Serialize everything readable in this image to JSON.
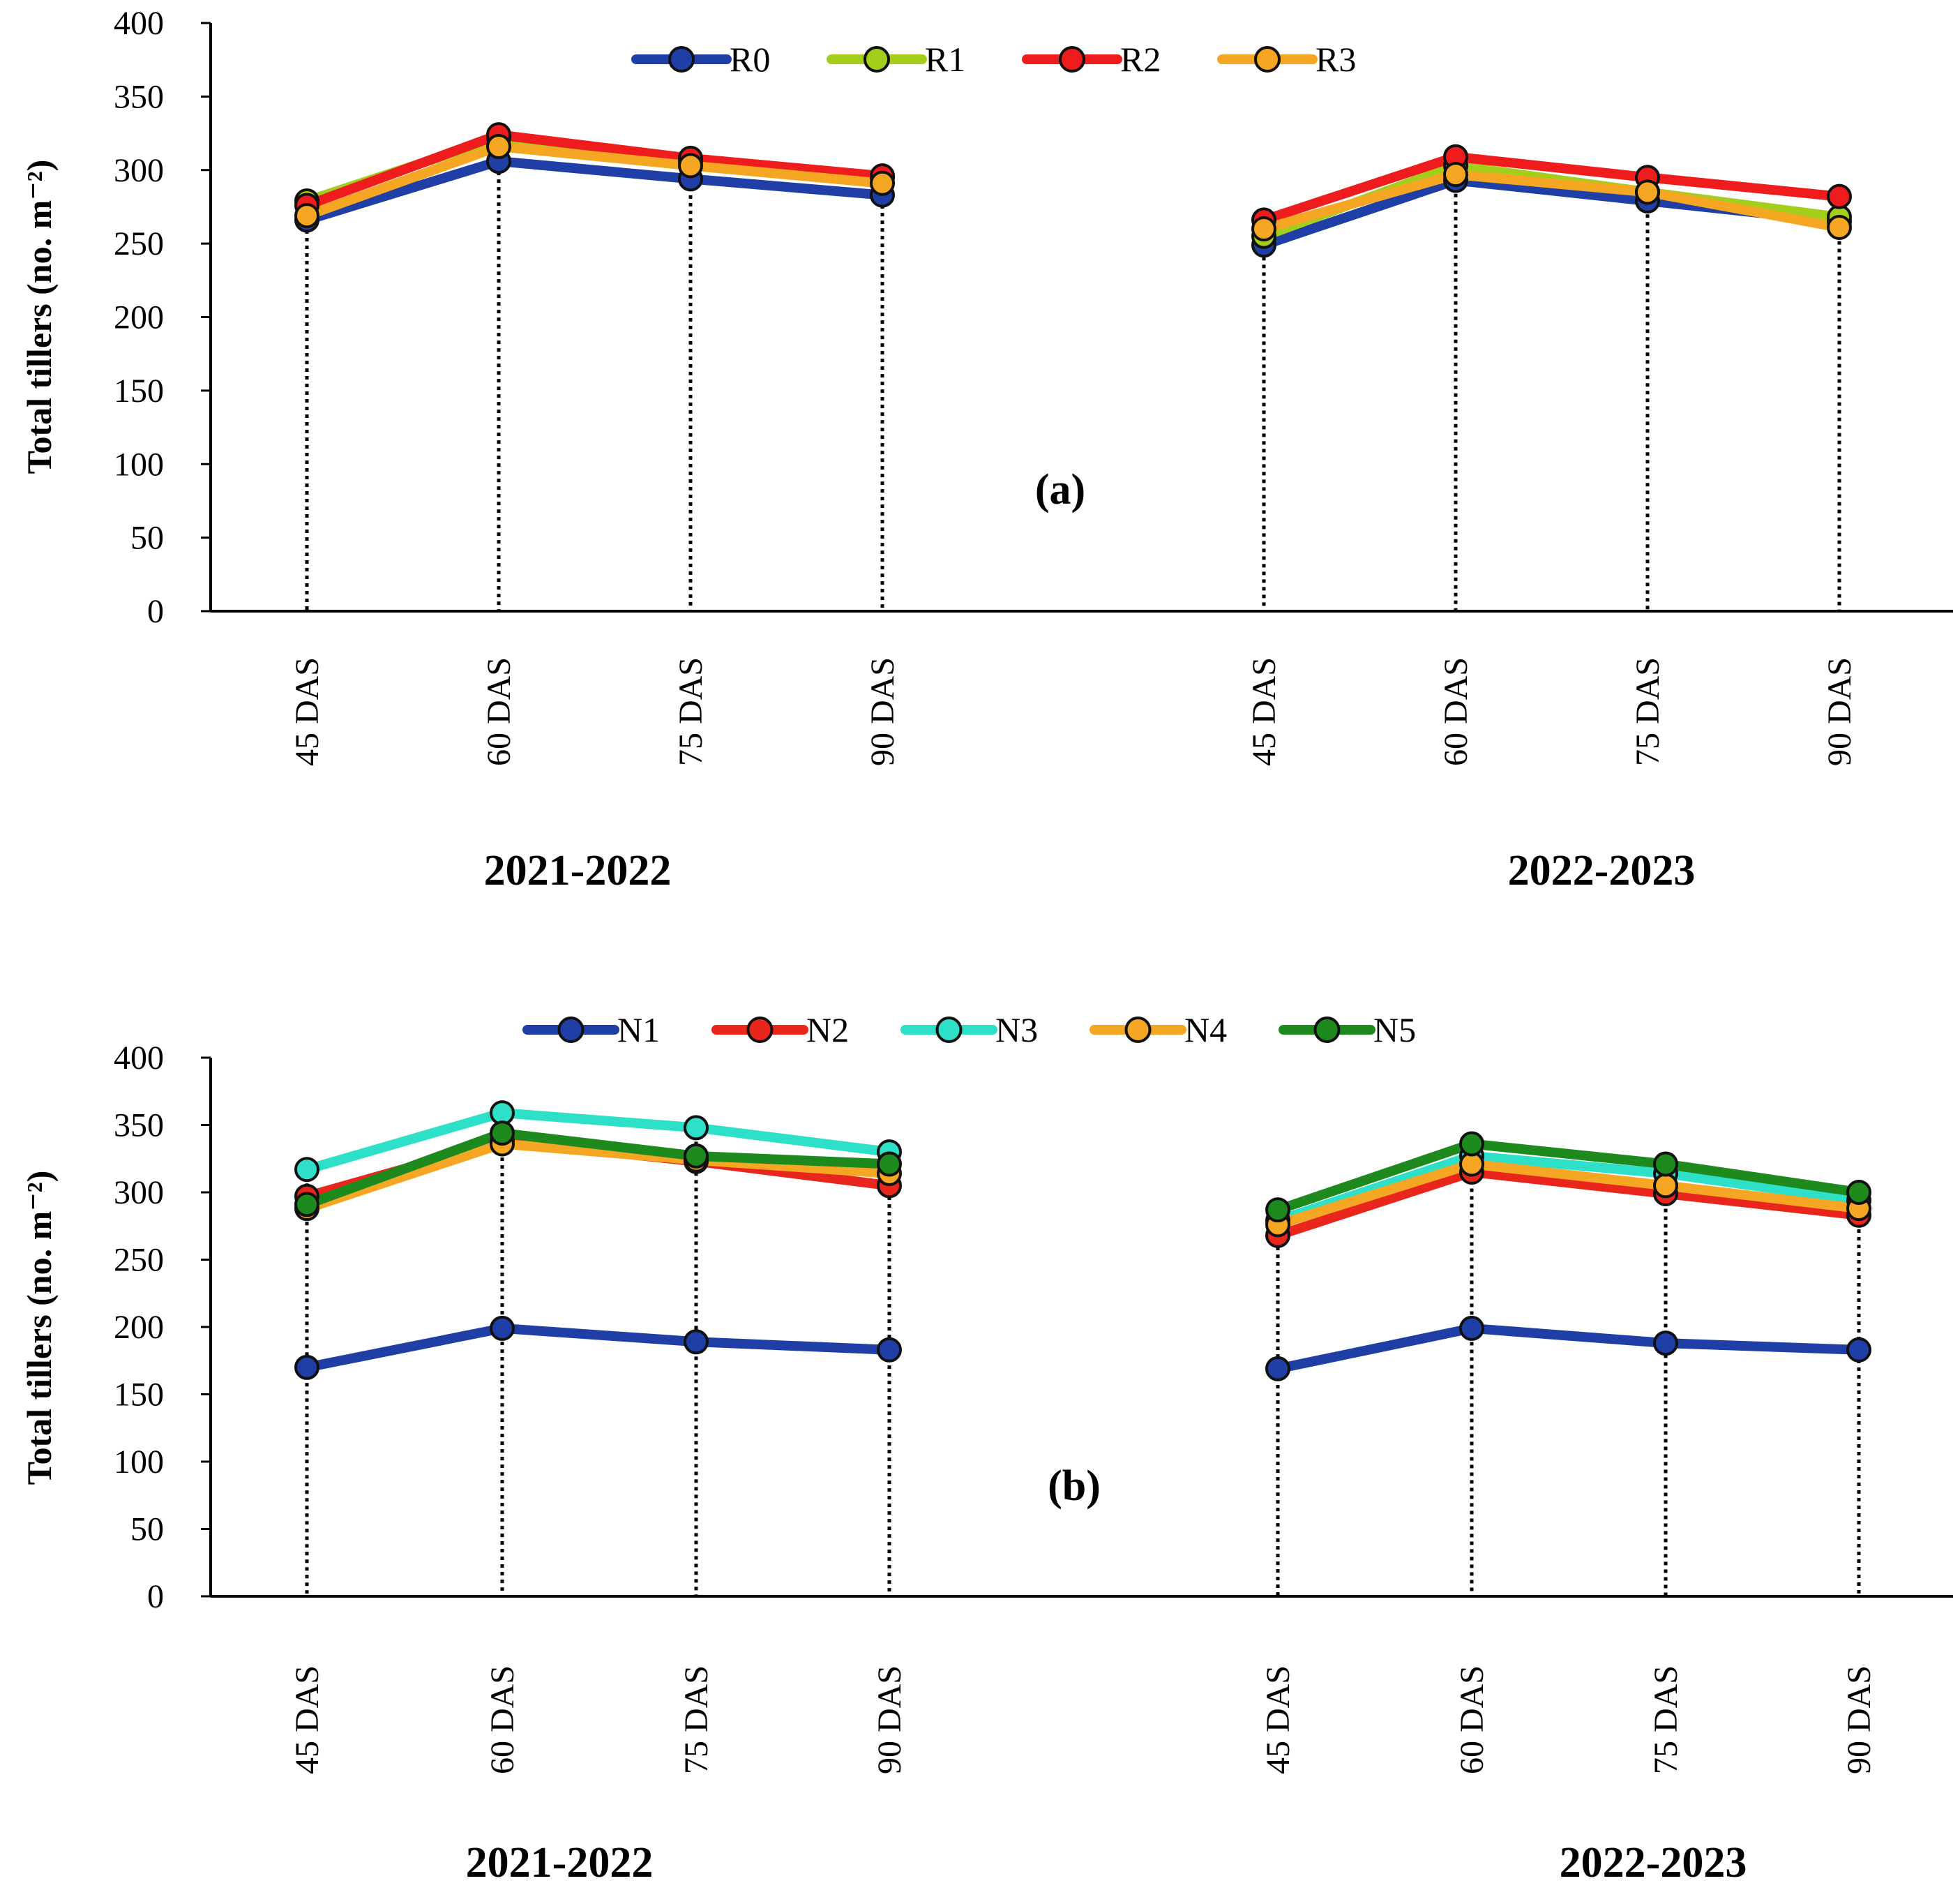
{
  "chart_data": [
    {
      "type": "line",
      "panel_label": "(a)",
      "ylabel": "Total tillers (no. m⁻²)",
      "ylim": [
        0,
        400
      ],
      "yticks": [
        "0",
        "50",
        "100",
        "150",
        "200",
        "250",
        "300",
        "350",
        "400"
      ],
      "groups": [
        {
          "label": "2021-2022",
          "categories": [
            "45 DAS",
            "60 DAS",
            "75 DAS",
            "90 DAS"
          ]
        },
        {
          "label": "2022-2023",
          "categories": [
            "45 DAS",
            "60 DAS",
            "75 DAS",
            "90 DAS"
          ]
        }
      ],
      "legend_position": "top-center",
      "series": [
        {
          "name": "R0",
          "color": "#1f3fa6",
          "values": [
            [
              266,
              306,
              294,
              283
            ],
            [
              249,
              293,
              279,
              265
            ]
          ]
        },
        {
          "name": "R1",
          "color": "#a3cf1c",
          "values": [
            [
              279,
              322,
              306,
              295
            ],
            [
              255,
              303,
              285,
              268
            ]
          ]
        },
        {
          "name": "R2",
          "color": "#ee1c1c",
          "values": [
            [
              276,
              324,
              308,
              296
            ],
            [
              266,
              309,
              295,
              282
            ]
          ]
        },
        {
          "name": "R3",
          "color": "#f5a623",
          "values": [
            [
              269,
              316,
              303,
              291
            ],
            [
              260,
              297,
              285,
              261
            ]
          ]
        }
      ]
    },
    {
      "type": "line",
      "panel_label": "(b)",
      "ylabel": "Total tillers (no. m⁻²)",
      "ylim": [
        0,
        400
      ],
      "yticks": [
        "0",
        "50",
        "100",
        "150",
        "200",
        "250",
        "300",
        "350",
        "400"
      ],
      "groups": [
        {
          "label": "2021-2022",
          "categories": [
            "45 DAS",
            "60 DAS",
            "75 DAS",
            "90 DAS"
          ]
        },
        {
          "label": "2022-2023",
          "categories": [
            "45 DAS",
            "60 DAS",
            "75 DAS",
            "90 DAS"
          ]
        }
      ],
      "legend_position": "top-center",
      "series": [
        {
          "name": "N1",
          "color": "#1f3fa6",
          "values": [
            [
              170,
              199,
              189,
              183
            ],
            [
              169,
              199,
              188,
              183
            ]
          ]
        },
        {
          "name": "N2",
          "color": "#e8261c",
          "values": [
            [
              297,
              338,
              323,
              305
            ],
            [
              268,
              315,
              299,
              283
            ]
          ]
        },
        {
          "name": "N3",
          "color": "#2ee0c8",
          "values": [
            [
              317,
              359,
              348,
              330
            ],
            [
              279,
              327,
              314,
              294
            ]
          ]
        },
        {
          "name": "N4",
          "color": "#f5a623",
          "values": [
            [
              288,
              336,
              324,
              314
            ],
            [
              276,
              321,
              305,
              288
            ]
          ]
        },
        {
          "name": "N5",
          "color": "#1e8a1e",
          "values": [
            [
              291,
              344,
              327,
              321
            ],
            [
              287,
              336,
              321,
              300
            ]
          ]
        }
      ]
    }
  ]
}
